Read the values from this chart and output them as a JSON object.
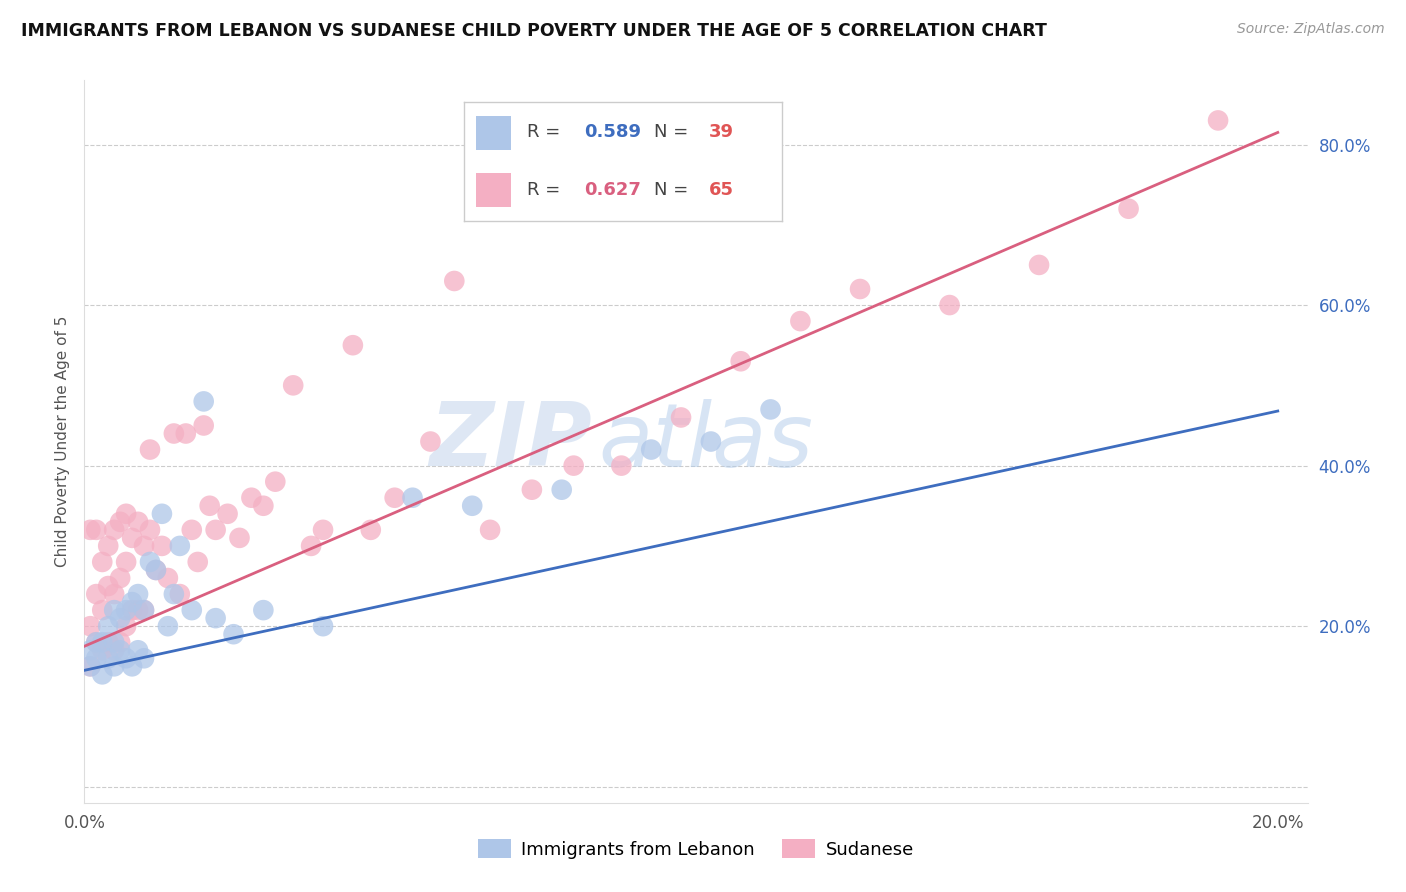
{
  "title": "IMMIGRANTS FROM LEBANON VS SUDANESE CHILD POVERTY UNDER THE AGE OF 5 CORRELATION CHART",
  "source": "Source: ZipAtlas.com",
  "ylabel": "Child Poverty Under the Age of 5",
  "xlim": [
    0.0,
    0.205
  ],
  "ylim": [
    -0.02,
    0.88
  ],
  "yticks": [
    0.0,
    0.2,
    0.4,
    0.6,
    0.8
  ],
  "xticks": [
    0.0,
    0.05,
    0.1,
    0.15,
    0.2
  ],
  "blue_R": 0.589,
  "blue_N": 39,
  "pink_R": 0.627,
  "pink_N": 65,
  "blue_color": "#aec6e8",
  "pink_color": "#f4afc3",
  "blue_line_color": "#3e6dbf",
  "pink_line_color": "#d95f7f",
  "blue_label": "Immigrants from Lebanon",
  "pink_label": "Sudanese",
  "watermark_zip": "ZIP",
  "watermark_atlas": "atlas",
  "background_color": "#ffffff",
  "blue_line_y0": 0.145,
  "blue_line_y1": 0.468,
  "pink_line_y0": 0.175,
  "pink_line_y1": 0.815,
  "blue_x": [
    0.001,
    0.001,
    0.002,
    0.002,
    0.003,
    0.003,
    0.004,
    0.004,
    0.005,
    0.005,
    0.005,
    0.006,
    0.006,
    0.007,
    0.007,
    0.008,
    0.008,
    0.009,
    0.009,
    0.01,
    0.01,
    0.011,
    0.012,
    0.013,
    0.014,
    0.015,
    0.016,
    0.018,
    0.02,
    0.022,
    0.025,
    0.03,
    0.04,
    0.055,
    0.065,
    0.08,
    0.095,
    0.105,
    0.115
  ],
  "blue_y": [
    0.15,
    0.17,
    0.16,
    0.18,
    0.14,
    0.18,
    0.16,
    0.2,
    0.15,
    0.18,
    0.22,
    0.17,
    0.21,
    0.16,
    0.22,
    0.15,
    0.23,
    0.17,
    0.24,
    0.16,
    0.22,
    0.28,
    0.27,
    0.34,
    0.2,
    0.24,
    0.3,
    0.22,
    0.48,
    0.21,
    0.19,
    0.22,
    0.2,
    0.36,
    0.35,
    0.37,
    0.42,
    0.43,
    0.47
  ],
  "pink_x": [
    0.001,
    0.001,
    0.001,
    0.002,
    0.002,
    0.002,
    0.003,
    0.003,
    0.003,
    0.004,
    0.004,
    0.004,
    0.005,
    0.005,
    0.005,
    0.006,
    0.006,
    0.006,
    0.007,
    0.007,
    0.007,
    0.008,
    0.008,
    0.009,
    0.009,
    0.01,
    0.01,
    0.011,
    0.011,
    0.012,
    0.013,
    0.014,
    0.015,
    0.016,
    0.017,
    0.018,
    0.019,
    0.02,
    0.021,
    0.022,
    0.024,
    0.026,
    0.028,
    0.03,
    0.032,
    0.035,
    0.038,
    0.04,
    0.045,
    0.048,
    0.052,
    0.058,
    0.062,
    0.068,
    0.075,
    0.082,
    0.09,
    0.1,
    0.11,
    0.12,
    0.13,
    0.145,
    0.16,
    0.175,
    0.19
  ],
  "pink_y": [
    0.15,
    0.2,
    0.32,
    0.18,
    0.24,
    0.32,
    0.17,
    0.22,
    0.28,
    0.18,
    0.25,
    0.3,
    0.17,
    0.24,
    0.32,
    0.18,
    0.26,
    0.33,
    0.2,
    0.28,
    0.34,
    0.22,
    0.31,
    0.22,
    0.33,
    0.22,
    0.3,
    0.32,
    0.42,
    0.27,
    0.3,
    0.26,
    0.44,
    0.24,
    0.44,
    0.32,
    0.28,
    0.45,
    0.35,
    0.32,
    0.34,
    0.31,
    0.36,
    0.35,
    0.38,
    0.5,
    0.3,
    0.32,
    0.55,
    0.32,
    0.36,
    0.43,
    0.63,
    0.32,
    0.37,
    0.4,
    0.4,
    0.46,
    0.53,
    0.58,
    0.62,
    0.6,
    0.65,
    0.72,
    0.83
  ]
}
